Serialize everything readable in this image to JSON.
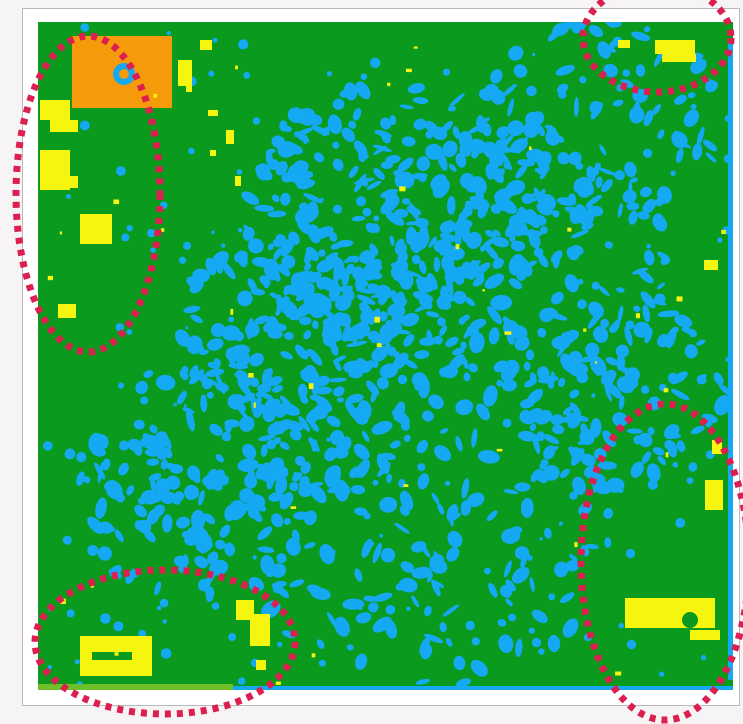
{
  "map": {
    "legend_classes": [
      {
        "name": "vegetation",
        "color": "#0a9a1d"
      },
      {
        "name": "water",
        "color": "#14a9f2"
      },
      {
        "name": "built-up",
        "color": "#f5f50f"
      },
      {
        "name": "bare-soil",
        "color": "#f59a0a"
      },
      {
        "name": "cropland-edge",
        "color": "#6fbf2a"
      }
    ],
    "highlight_color": "#dc1f4f",
    "highlight_regions": [
      {
        "name": "top-left-region"
      },
      {
        "name": "top-right-region"
      },
      {
        "name": "bottom-left-region"
      },
      {
        "name": "bottom-right-region"
      }
    ]
  }
}
